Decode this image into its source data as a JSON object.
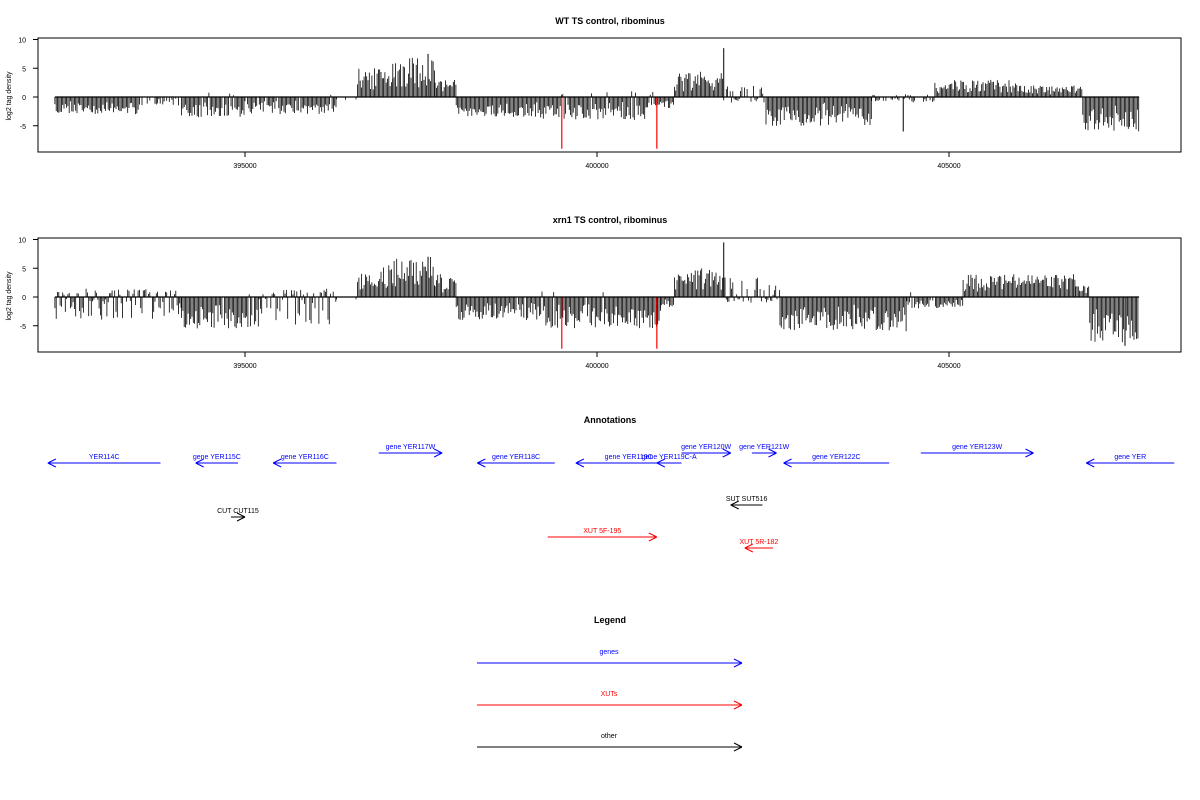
{
  "chart_data": [
    {
      "type": "bar",
      "title": "WT TS control, ribominus",
      "ylabel": "log2 tag density",
      "xlabel": "",
      "xlim": [
        392200,
        408200
      ],
      "ylim": [
        -9.5,
        10
      ],
      "x_ticks": [
        395000,
        400000,
        405000
      ],
      "x_tick_labels": [
        "395000",
        "400000",
        "405000"
      ],
      "y_ticks": [
        -5,
        0,
        5,
        10
      ],
      "y_tick_labels": [
        "-5",
        "0",
        "5",
        "10"
      ],
      "baseline": {
        "from": 392300,
        "to": 407700,
        "value": 0
      },
      "red_markers": [
        {
          "x": 399500,
          "min": -9.0,
          "max": 0
        },
        {
          "x": 400850,
          "min": -9.0,
          "max": 0
        }
      ],
      "series": [
        {
          "values": [
            {
              "from": 392300,
              "to": 393500,
              "min": -3.0,
              "max": 0
            },
            {
              "from": 393500,
              "to": 394100,
              "min": -1.5,
              "max": 0
            },
            {
              "from": 394100,
              "to": 395000,
              "min": -3.5,
              "max": 1.0
            },
            {
              "from": 395000,
              "to": 396300,
              "min": -3.0,
              "max": 0.5
            },
            {
              "from": 396300,
              "to": 396600,
              "min": -0.5,
              "max": 0
            },
            {
              "from": 396600,
              "to": 397100,
              "min": -0.3,
              "max": 5.0
            },
            {
              "from": 397100,
              "to": 397700,
              "min": -0.3,
              "max": 7.0
            },
            {
              "from": 397700,
              "to": 398000,
              "min": -0.3,
              "max": 3.0
            },
            {
              "from": 398000,
              "to": 399200,
              "min": -3.5,
              "max": 0
            },
            {
              "from": 399200,
              "to": 400700,
              "min": -4.0,
              "max": 1.0
            },
            {
              "from": 400700,
              "to": 401100,
              "min": -2.0,
              "max": 1.0
            },
            {
              "from": 401100,
              "to": 401800,
              "min": -0.3,
              "max": 4.5
            },
            {
              "from": 401800,
              "to": 402400,
              "min": -1.0,
              "max": 2.0
            },
            {
              "from": 402400,
              "to": 403900,
              "min": -5.0,
              "max": 0
            },
            {
              "from": 403900,
              "to": 404800,
              "min": -1.0,
              "max": 0.5
            },
            {
              "from": 404800,
              "to": 406000,
              "min": -0.5,
              "max": 3.0
            },
            {
              "from": 406000,
              "to": 406900,
              "min": -0.5,
              "max": 2.0
            },
            {
              "from": 406900,
              "to": 407700,
              "min": -6.0,
              "max": 0
            }
          ]
        }
      ],
      "peaks": [
        {
          "x": 401800,
          "value": 8.5
        },
        {
          "x": 404350,
          "value": -6.0
        },
        {
          "x": 397600,
          "value": 7.5
        }
      ]
    },
    {
      "type": "bar",
      "title": "xrn1 TS control, ribominus",
      "ylabel": "log2 tag density",
      "xlabel": "",
      "xlim": [
        392200,
        408200
      ],
      "ylim": [
        -9.5,
        10
      ],
      "x_ticks": [
        395000,
        400000,
        405000
      ],
      "x_tick_labels": [
        "395000",
        "400000",
        "405000"
      ],
      "y_ticks": [
        -5,
        0,
        5,
        10
      ],
      "y_tick_labels": [
        "-5",
        "0",
        "5",
        "10"
      ],
      "baseline": {
        "from": 392300,
        "to": 407700,
        "value": 0
      },
      "red_markers": [
        {
          "x": 399500,
          "min": -9.0,
          "max": 0
        },
        {
          "x": 400850,
          "min": -9.0,
          "max": 0
        }
      ],
      "series": [
        {
          "values": [
            {
              "from": 392300,
              "to": 394100,
              "min": -4.0,
              "max": 1.5
            },
            {
              "from": 394100,
              "to": 395200,
              "min": -5.5,
              "max": 0.5
            },
            {
              "from": 395200,
              "to": 396300,
              "min": -5.0,
              "max": 1.5
            },
            {
              "from": 396300,
              "to": 396600,
              "min": -0.5,
              "max": 0
            },
            {
              "from": 396600,
              "to": 397100,
              "min": -0.3,
              "max": 5.5
            },
            {
              "from": 397100,
              "to": 397700,
              "min": -0.3,
              "max": 7.0
            },
            {
              "from": 397700,
              "to": 398000,
              "min": -0.3,
              "max": 4.0
            },
            {
              "from": 398000,
              "to": 399200,
              "min": -4.0,
              "max": 0.5
            },
            {
              "from": 399200,
              "to": 400900,
              "min": -5.5,
              "max": 1.0
            },
            {
              "from": 400900,
              "to": 401100,
              "min": -2.0,
              "max": 1.0
            },
            {
              "from": 401100,
              "to": 401800,
              "min": -0.3,
              "max": 5.0
            },
            {
              "from": 401800,
              "to": 402600,
              "min": -1.0,
              "max": 4.0
            },
            {
              "from": 402600,
              "to": 404400,
              "min": -6.0,
              "max": 0
            },
            {
              "from": 404400,
              "to": 405200,
              "min": -2.0,
              "max": 1.0
            },
            {
              "from": 405200,
              "to": 406800,
              "min": -0.5,
              "max": 4.0
            },
            {
              "from": 406800,
              "to": 407000,
              "min": -0.5,
              "max": 2.0
            },
            {
              "from": 407000,
              "to": 407700,
              "min": -8.0,
              "max": 0
            }
          ]
        }
      ],
      "peaks": [
        {
          "x": 401800,
          "value": 9.5
        },
        {
          "x": 407500,
          "value": -8.5
        },
        {
          "x": 397600,
          "value": 7.0
        }
      ]
    }
  ],
  "annotations": {
    "title": "Annotations",
    "x_range": [
      392200,
      408200
    ],
    "features": [
      {
        "label": "YER114C",
        "start": 392200,
        "end": 393800,
        "strand": "-",
        "row": 0,
        "kind": "genes"
      },
      {
        "label": "gene YER115C",
        "start": 394300,
        "end": 394900,
        "strand": "-",
        "row": 0,
        "kind": "genes"
      },
      {
        "label": "gene YER116C",
        "start": 395400,
        "end": 396300,
        "strand": "-",
        "row": 0,
        "kind": "genes"
      },
      {
        "label": "gene YER117W",
        "start": 396900,
        "end": 397800,
        "strand": "+",
        "row": 1,
        "kind": "genes"
      },
      {
        "label": "gene YER118C",
        "start": 398300,
        "end": 399400,
        "strand": "-",
        "row": 0,
        "kind": "genes"
      },
      {
        "label": "gene YER119C",
        "start": 399700,
        "end": 401200,
        "strand": "-",
        "row": 0,
        "kind": "genes"
      },
      {
        "label": "gene YER119C-A",
        "start": 400850,
        "end": 401200,
        "strand": "-",
        "row": 0,
        "kind": "genes"
      },
      {
        "label": "gene YER120W",
        "start": 401200,
        "end": 401900,
        "strand": "+",
        "row": 1,
        "kind": "genes"
      },
      {
        "label": "gene YER121W",
        "start": 402200,
        "end": 402550,
        "strand": "+",
        "row": 1,
        "kind": "genes"
      },
      {
        "label": "gene YER122C",
        "start": 402650,
        "end": 404150,
        "strand": "-",
        "row": 0,
        "kind": "genes"
      },
      {
        "label": "gene YER123W",
        "start": 404600,
        "end": 406200,
        "strand": "+",
        "row": 1,
        "kind": "genes"
      },
      {
        "label": "gene YER",
        "start": 406950,
        "end": 408200,
        "strand": "-",
        "row": 0,
        "kind": "genes"
      },
      {
        "label": "CUT CUT115",
        "start": 394800,
        "end": 395000,
        "strand": "+",
        "row": 3,
        "kind": "other"
      },
      {
        "label": "SUT SUT516",
        "start": 401900,
        "end": 402350,
        "strand": "-",
        "row": 2,
        "kind": "other"
      },
      {
        "label": "XUT 5F-195",
        "start": 399300,
        "end": 400850,
        "strand": "+",
        "row": 4,
        "kind": "XUTs"
      },
      {
        "label": "XUT 5R-182",
        "start": 402100,
        "end": 402500,
        "strand": "-",
        "row": 5,
        "kind": "XUTs"
      }
    ]
  },
  "legend": {
    "title": "Legend",
    "items": [
      {
        "label": "genes",
        "color": "#0000ff"
      },
      {
        "label": "XUTs",
        "color": "#ff0000"
      },
      {
        "label": "other",
        "color": "#000000"
      }
    ]
  },
  "colors": {
    "genes": "#0000ff",
    "XUTs": "#ff0000",
    "other": "#000000",
    "markers": "#ff0000",
    "bars": "#000000"
  }
}
